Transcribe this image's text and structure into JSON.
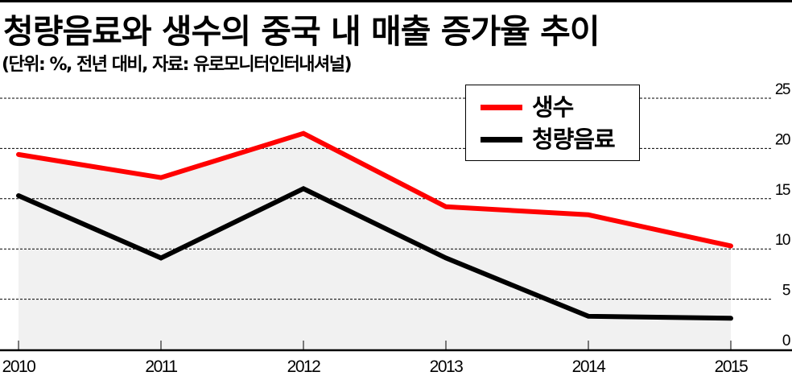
{
  "header": {
    "title": "청량음료와 생수의 중국 내 매출 증가율 추이",
    "subtitle": "(단위: %, 전년 대비, 자료: 유로모니터인터내셔널)"
  },
  "legend": {
    "items": [
      {
        "label": "생수",
        "color": "#ff0000"
      },
      {
        "label": "청량음료",
        "color": "#000000"
      }
    ]
  },
  "colors": {
    "water": "#ff0000",
    "soft_drinks": "#000000",
    "area_fill": "#f1f1f1",
    "grid": "#000000"
  },
  "chart_data": {
    "type": "line",
    "title": "청량음료와 생수의 중국 내 매출 증가율 추이",
    "subtitle": "(단위: %, 전년 대비, 자료: 유로모니터인터내셔널)",
    "xlabel": "",
    "ylabel": "",
    "categories": [
      "2010",
      "2011",
      "2012",
      "2013",
      "2014",
      "2015"
    ],
    "series": [
      {
        "name": "생수",
        "color": "#ff0000",
        "values": [
          19.4,
          17.1,
          21.5,
          14.2,
          13.4,
          10.3
        ],
        "area_fill": true
      },
      {
        "name": "청량음료",
        "color": "#000000",
        "values": [
          15.3,
          9.1,
          16.0,
          9.1,
          3.3,
          3.1
        ]
      }
    ],
    "y_ticks": [
      "0",
      "5",
      "10",
      "15",
      "20",
      "25"
    ],
    "ylim": [
      0,
      25
    ],
    "y_axis_position": "right",
    "grid": "horizontal dashed",
    "legend_position": "top-center inset"
  }
}
